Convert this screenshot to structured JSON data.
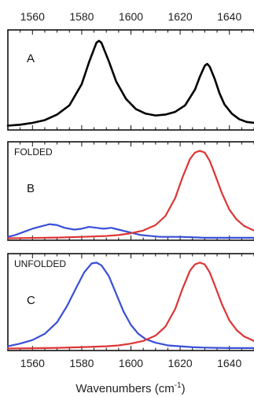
{
  "chart_data": {
    "type": "line",
    "xlabel": "Wavenumbers (cm⁻¹)",
    "xlim": [
      1550,
      1650
    ],
    "xticks": [
      1560,
      1580,
      1600,
      1620,
      1640
    ],
    "grid": false,
    "colors": {
      "axis": "#111111",
      "black": "#000000",
      "blue": "#3a4fd6",
      "red": "#dd3535"
    },
    "panels": [
      {
        "id": "A",
        "title": "",
        "label": "A",
        "ylim": [
          0,
          1.0
        ],
        "series": [
          {
            "color": "black",
            "x": [
              1550,
              1555,
              1560,
              1565,
              1570,
              1575,
              1580,
              1583,
              1586,
              1587,
              1588,
              1591,
              1594,
              1598,
              1602,
              1606,
              1610,
              1614,
              1618,
              1622,
              1626,
              1628,
              1630,
              1631,
              1632,
              1634,
              1636,
              1638,
              1641,
              1644,
              1647,
              1650
            ],
            "y": [
              0.03,
              0.04,
              0.06,
              0.09,
              0.15,
              0.25,
              0.48,
              0.72,
              0.93,
              0.95,
              0.93,
              0.73,
              0.51,
              0.32,
              0.21,
              0.16,
              0.14,
              0.15,
              0.18,
              0.25,
              0.42,
              0.56,
              0.68,
              0.7,
              0.67,
              0.54,
              0.38,
              0.26,
              0.16,
              0.1,
              0.07,
              0.06
            ]
          }
        ]
      },
      {
        "id": "B",
        "title": "FOLDED",
        "label": "B",
        "ylim": [
          0,
          1.0
        ],
        "series": [
          {
            "color": "blue",
            "x": [
              1550,
              1553,
              1556,
              1560,
              1564,
              1567,
              1570,
              1573,
              1577,
              1580,
              1583,
              1586,
              1589,
              1592,
              1595,
              1598,
              1601,
              1604,
              1608,
              1612,
              1616,
              1620,
              1625,
              1630,
              1635,
              1640,
              1645,
              1650
            ],
            "y": [
              0.02,
              0.04,
              0.07,
              0.11,
              0.14,
              0.16,
              0.15,
              0.12,
              0.1,
              0.11,
              0.13,
              0.12,
              0.11,
              0.12,
              0.1,
              0.08,
              0.06,
              0.04,
              0.03,
              0.02,
              0.02,
              0.02,
              0.015,
              0.01,
              0.01,
              0.01,
              0.01,
              0.01
            ]
          },
          {
            "color": "red",
            "x": [
              1550,
              1560,
              1570,
              1580,
              1590,
              1595,
              1600,
              1605,
              1610,
              1614,
              1618,
              1621,
              1624,
              1626,
              1628,
              1630,
              1632,
              1634,
              1637,
              1640,
              1643,
              1646,
              1650
            ],
            "y": [
              0.005,
              0.008,
              0.012,
              0.02,
              0.03,
              0.04,
              0.06,
              0.09,
              0.15,
              0.25,
              0.45,
              0.68,
              0.88,
              0.95,
              0.97,
              0.95,
              0.86,
              0.72,
              0.5,
              0.32,
              0.21,
              0.14,
              0.09
            ]
          }
        ]
      },
      {
        "id": "C",
        "title": "UNFOLDED",
        "label": "C",
        "ylim": [
          0,
          1.0
        ],
        "series": [
          {
            "color": "blue",
            "x": [
              1550,
              1555,
              1560,
              1565,
              1570,
              1574,
              1578,
              1581,
              1584,
              1586,
              1588,
              1591,
              1594,
              1597,
              1600,
              1603,
              1606,
              1610,
              1615,
              1620,
              1625,
              1630,
              1640,
              1650
            ],
            "y": [
              0.03,
              0.06,
              0.1,
              0.17,
              0.3,
              0.48,
              0.7,
              0.86,
              0.96,
              0.97,
              0.94,
              0.82,
              0.62,
              0.42,
              0.27,
              0.17,
              0.11,
              0.07,
              0.04,
              0.03,
              0.02,
              0.015,
              0.01,
              0.01
            ]
          },
          {
            "color": "red",
            "x": [
              1550,
              1560,
              1570,
              1580,
              1590,
              1595,
              1600,
              1605,
              1610,
              1614,
              1618,
              1621,
              1624,
              1626,
              1628,
              1630,
              1632,
              1634,
              1637,
              1640,
              1643,
              1646,
              1650
            ],
            "y": [
              0.005,
              0.008,
              0.012,
              0.02,
              0.03,
              0.04,
              0.06,
              0.09,
              0.15,
              0.25,
              0.45,
              0.68,
              0.88,
              0.95,
              0.97,
              0.95,
              0.86,
              0.72,
              0.5,
              0.32,
              0.21,
              0.14,
              0.09
            ]
          }
        ]
      }
    ]
  }
}
